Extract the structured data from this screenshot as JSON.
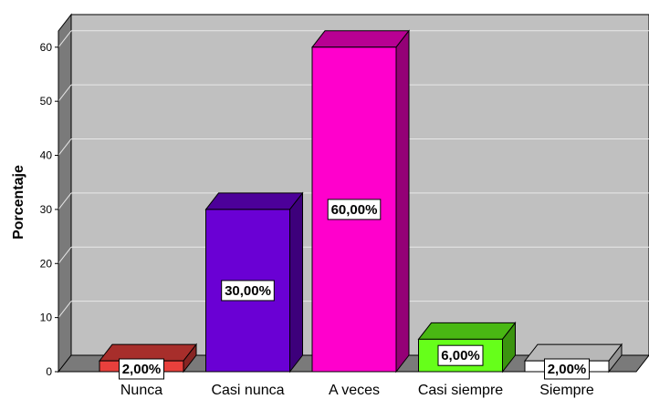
{
  "chart_data": {
    "type": "bar",
    "style": "3d",
    "categories": [
      "Nunca",
      "Casi nunca",
      "A veces",
      "Casi siempre",
      "Siempre"
    ],
    "values": [
      2,
      30,
      60,
      6,
      2
    ],
    "data_labels": [
      "2,00%",
      "30,00%",
      "60,00%",
      "6,00%",
      "2,00%"
    ],
    "colors": [
      "#e8403c",
      "#6a00d4",
      "#ff00cc",
      "#66ff1a",
      "#ffffff"
    ],
    "ylabel": "Porcentaje",
    "xlabel": "",
    "yticks": [
      "0",
      "10",
      "20",
      "30",
      "40",
      "50",
      "60"
    ],
    "ylim": [
      0,
      63
    ],
    "grid": true,
    "background_color": "#c0c0c0"
  }
}
